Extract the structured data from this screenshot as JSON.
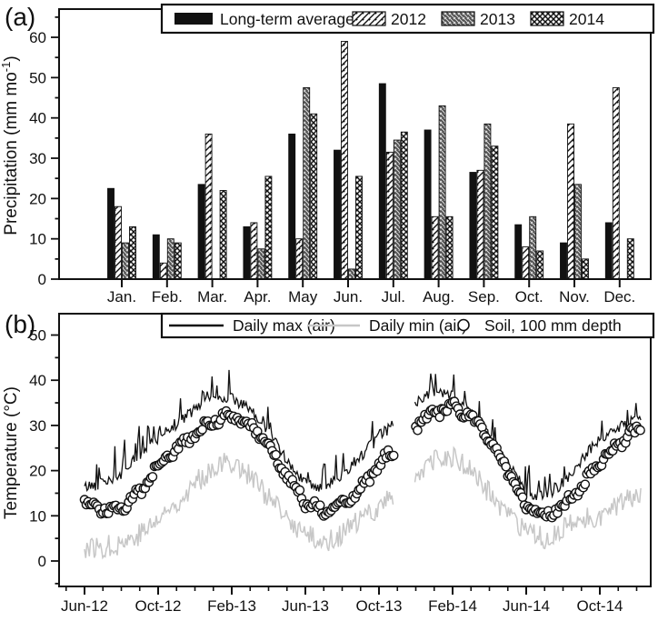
{
  "figure": {
    "panel_a_label": "(a)",
    "panel_b_label": "(b)",
    "background": "#ffffff",
    "frame_color": "#111111"
  },
  "chart_data": [
    {
      "type": "bar",
      "panel": "a",
      "ylabel": {
        "pre": "Precipitation (mm mo",
        "sup": "-1",
        "post": ")"
      },
      "ylim": [
        0,
        67
      ],
      "yticks": [
        0,
        10,
        20,
        30,
        40,
        50,
        60
      ],
      "y_minor_step": 5,
      "grid": false,
      "legend_position": "top-inside",
      "categories": [
        "Jan.",
        "Feb.",
        "Mar.",
        "Apr.",
        "May",
        "Jun.",
        "Jul.",
        "Aug.",
        "Sep.",
        "Oct.",
        "Nov.",
        "Dec."
      ],
      "series": [
        {
          "name": "Long-term average",
          "pattern": "solid",
          "values": [
            22.5,
            11,
            23.5,
            13,
            36,
            32,
            48.5,
            37,
            26.5,
            13.5,
            9,
            14
          ]
        },
        {
          "name": "2012",
          "pattern": "diagonal-light",
          "values": [
            18,
            4,
            36,
            14,
            10,
            59,
            31.5,
            15.5,
            27,
            8,
            38.5,
            47.5
          ]
        },
        {
          "name": "2013",
          "pattern": "diagonal-dark",
          "values": [
            9,
            10,
            0,
            7.5,
            47.5,
            2.5,
            34.5,
            43,
            38.5,
            15.5,
            23.5,
            0
          ]
        },
        {
          "name": "2014",
          "pattern": "crosshatch",
          "values": [
            13,
            9,
            22,
            25.5,
            41,
            25.5,
            36.5,
            15.5,
            33,
            7,
            5,
            10
          ]
        }
      ]
    },
    {
      "type": "line",
      "panel": "b",
      "ylabel": {
        "pre": "Temperature (°C)",
        "sup": "",
        "post": ""
      },
      "ylim": [
        -5.5,
        54.5
      ],
      "yticks": [
        0,
        10,
        20,
        30,
        40,
        50
      ],
      "y_minor_step": 5,
      "grid": false,
      "legend_position": "top-inside",
      "x_axis": {
        "unit": "month",
        "months": [
          "Jun-12",
          "Jul-12",
          "Aug-12",
          "Sep-12",
          "Oct-12",
          "Nov-12",
          "Dec-12",
          "Jan-13",
          "Feb-13",
          "Mar-13",
          "Apr-13",
          "May-13",
          "Jun-13",
          "Jul-13",
          "Aug-13",
          "Sep-13",
          "Oct-13",
          "Nov-13",
          "Dec-13",
          "Jan-14",
          "Feb-14",
          "Mar-14",
          "Apr-14",
          "May-14",
          "Jun-14",
          "Jul-14",
          "Aug-14",
          "Sep-14",
          "Oct-14",
          "Nov-14",
          "Dec-14"
        ],
        "major_tick_labels": [
          "Jun-12",
          "Oct-12",
          "Feb-13",
          "Jun-13",
          "Oct-13",
          "Feb-14",
          "Jun-14",
          "Oct-14"
        ],
        "major_every_months": 4
      },
      "data_gap": {
        "month": "Nov-13",
        "index": 17
      },
      "series": [
        {
          "name": "Daily max (air)",
          "style": "line",
          "color": "#111111",
          "noise_amplitude": 6,
          "monthly_values": [
            16,
            17,
            19,
            23,
            27,
            30,
            33,
            36,
            36,
            33,
            28,
            22,
            17,
            16,
            19,
            23,
            27,
            null,
            35,
            37,
            36,
            33,
            27,
            21,
            15,
            14,
            17,
            22,
            27,
            29,
            31
          ]
        },
        {
          "name": "Daily min (air)",
          "style": "line",
          "color": "#c7c7c7",
          "noise_amplitude": 3,
          "monthly_values": [
            3,
            3,
            4,
            6,
            9,
            13,
            17,
            21,
            22,
            19,
            14,
            9,
            6,
            4,
            6,
            9,
            12,
            null,
            19,
            22,
            23,
            20,
            15,
            10,
            6,
            5,
            7,
            9,
            10,
            12,
            15
          ]
        },
        {
          "name": "Soil, 100 mm depth",
          "style": "open-circles",
          "color": "#111111",
          "fill": "#ffffff",
          "noise_amplitude": 1.5,
          "monthly_values": [
            13,
            11,
            12,
            15,
            21,
            25,
            28,
            31,
            32,
            30,
            26,
            19,
            13,
            11,
            13,
            16,
            21,
            null,
            30,
            33,
            34,
            32,
            27,
            20,
            12,
            10,
            12,
            16,
            22,
            26,
            29
          ]
        }
      ]
    }
  ]
}
